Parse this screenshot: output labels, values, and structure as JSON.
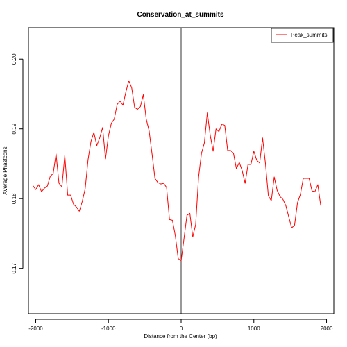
{
  "chart_data": {
    "type": "line",
    "title": "Conservation_at_summits",
    "xlabel": "Distance from the Center (bp)",
    "ylabel": "Average Phastcons",
    "xlim": [
      -2100,
      2100
    ],
    "ylim": [
      0.1635,
      0.2045
    ],
    "x_ticks": [
      -2000,
      -1000,
      0,
      1000,
      2000
    ],
    "x_tick_labels": [
      "-2000",
      "-1000",
      "0",
      "1000",
      "2000"
    ],
    "y_ticks": [
      0.17,
      0.18,
      0.19,
      0.2
    ],
    "y_tick_labels": [
      "0.17",
      "0.18",
      "0.19",
      "0.20"
    ],
    "grid": false,
    "center_line_x": 0,
    "legend_position": "top-right",
    "series": [
      {
        "name": "Peak_summits",
        "color": "#ff0000",
        "x": [
          -2040,
          -2000,
          -1960,
          -1920,
          -1880,
          -1840,
          -1800,
          -1760,
          -1720,
          -1680,
          -1640,
          -1600,
          -1560,
          -1520,
          -1480,
          -1440,
          -1400,
          -1360,
          -1320,
          -1280,
          -1240,
          -1200,
          -1160,
          -1120,
          -1080,
          -1040,
          -1000,
          -960,
          -920,
          -880,
          -840,
          -800,
          -760,
          -720,
          -680,
          -640,
          -600,
          -560,
          -520,
          -480,
          -440,
          -400,
          -360,
          -320,
          -280,
          -240,
          -200,
          -160,
          -120,
          -80,
          -40,
          0,
          40,
          80,
          120,
          160,
          200,
          240,
          280,
          320,
          360,
          400,
          440,
          480,
          520,
          560,
          600,
          640,
          680,
          720,
          760,
          800,
          840,
          880,
          920,
          960,
          1000,
          1040,
          1080,
          1120,
          1160,
          1200,
          1240,
          1280,
          1320,
          1360,
          1400,
          1440,
          1480,
          1520,
          1560,
          1600,
          1640,
          1680,
          1720,
          1760,
          1800,
          1840,
          1880,
          1920
        ],
        "values": [
          0.1819,
          0.1813,
          0.182,
          0.181,
          0.1815,
          0.1818,
          0.1832,
          0.1836,
          0.1864,
          0.1822,
          0.1817,
          0.1862,
          0.1805,
          0.1805,
          0.1792,
          0.1788,
          0.1782,
          0.1796,
          0.1814,
          0.1856,
          0.1882,
          0.1895,
          0.1876,
          0.1887,
          0.1902,
          0.1857,
          0.189,
          0.1908,
          0.1914,
          0.1935,
          0.194,
          0.1934,
          0.1953,
          0.1969,
          0.1959,
          0.1931,
          0.1928,
          0.1932,
          0.1949,
          0.1914,
          0.1897,
          0.1864,
          0.1829,
          0.1823,
          0.1821,
          0.1822,
          0.1816,
          0.177,
          0.1769,
          0.1747,
          0.1714,
          0.1711,
          0.1743,
          0.1776,
          0.1779,
          0.1745,
          0.1763,
          0.1831,
          0.1865,
          0.188,
          0.1923,
          0.1891,
          0.1868,
          0.19,
          0.1896,
          0.1907,
          0.1905,
          0.1869,
          0.1869,
          0.1865,
          0.1843,
          0.1852,
          0.184,
          0.1822,
          0.1849,
          0.1849,
          0.1868,
          0.1855,
          0.1851,
          0.1887,
          0.185,
          0.1804,
          0.1797,
          0.1831,
          0.1812,
          0.1803,
          0.1799,
          0.179,
          0.1774,
          0.1758,
          0.1762,
          0.1794,
          0.1806,
          0.1829,
          0.1829,
          0.1829,
          0.1811,
          0.181,
          0.182,
          0.179
        ]
      }
    ]
  }
}
